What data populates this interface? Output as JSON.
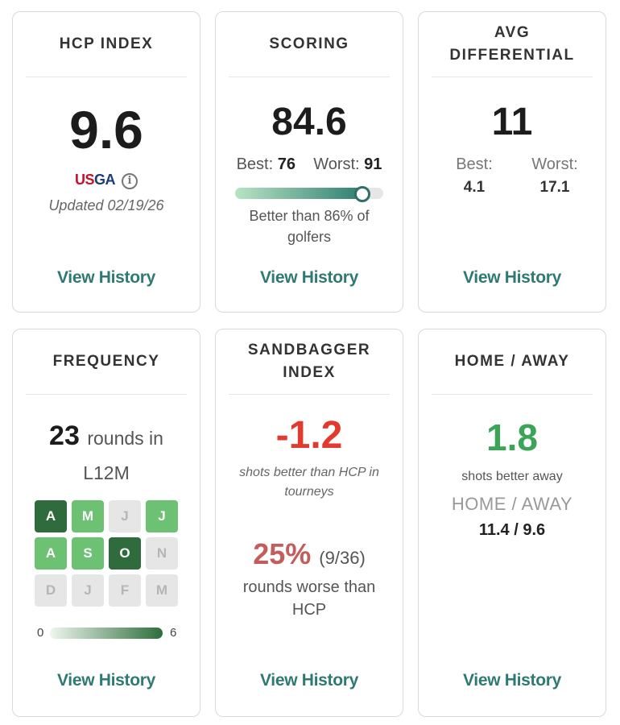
{
  "cards": {
    "hcp": {
      "title": "HCP INDEX",
      "value": "9.6",
      "logo_text": {
        "us": "US",
        "ga": "GA"
      },
      "info_icon": "i",
      "updated": "Updated 02/19/26",
      "link": "View History"
    },
    "scoring": {
      "title": "SCORING",
      "value": "84.6",
      "best_label": "Best:",
      "best": "76",
      "worst_label": "Worst:",
      "worst": "91",
      "progress_fraction": 0.86,
      "note": "Better than 86% of golfers",
      "link": "View History"
    },
    "differential": {
      "title_line1": "AVG",
      "title_line2": "DIFFERENTIAL",
      "value": "11",
      "best_label": "Best:",
      "best": "4.1",
      "worst_label": "Worst:",
      "worst": "17.1",
      "link": "View History"
    },
    "frequency": {
      "title": "FREQUENCY",
      "count": "23",
      "suffix": "rounds in",
      "period": "L12M",
      "months": [
        {
          "label": "A",
          "level": "dark"
        },
        {
          "label": "M",
          "level": "medium"
        },
        {
          "label": "J",
          "level": "none"
        },
        {
          "label": "J",
          "level": "medium"
        },
        {
          "label": "A",
          "level": "medium"
        },
        {
          "label": "S",
          "level": "medium"
        },
        {
          "label": "O",
          "level": "dark"
        },
        {
          "label": "N",
          "level": "none"
        },
        {
          "label": "D",
          "level": "none"
        },
        {
          "label": "J",
          "level": "none"
        },
        {
          "label": "F",
          "level": "none"
        },
        {
          "label": "M",
          "level": "none"
        }
      ],
      "legend_min": "0",
      "legend_max": "6",
      "link": "View History"
    },
    "sandbagger": {
      "title_line1": "SANDBAGGER",
      "title_line2": "INDEX",
      "value": "-1.2",
      "sub": "shots better than HCP in tourneys",
      "pct": "25%",
      "pct_detail": "(9/36)",
      "pct_note": "rounds worse than HCP",
      "link": "View History"
    },
    "homeaway": {
      "title": "HOME / AWAY",
      "value": "1.8",
      "sub": "shots better away",
      "label": "HOME / AWAY",
      "values": "11.4 / 9.6",
      "link": "View History"
    }
  },
  "colors": {
    "accent": "#2e7a72",
    "red": "#e23a2e",
    "green": "#3aa457",
    "month_dark": "#2f6b3c",
    "month_medium": "#6cc172",
    "month_none": "#e6e6e6"
  }
}
